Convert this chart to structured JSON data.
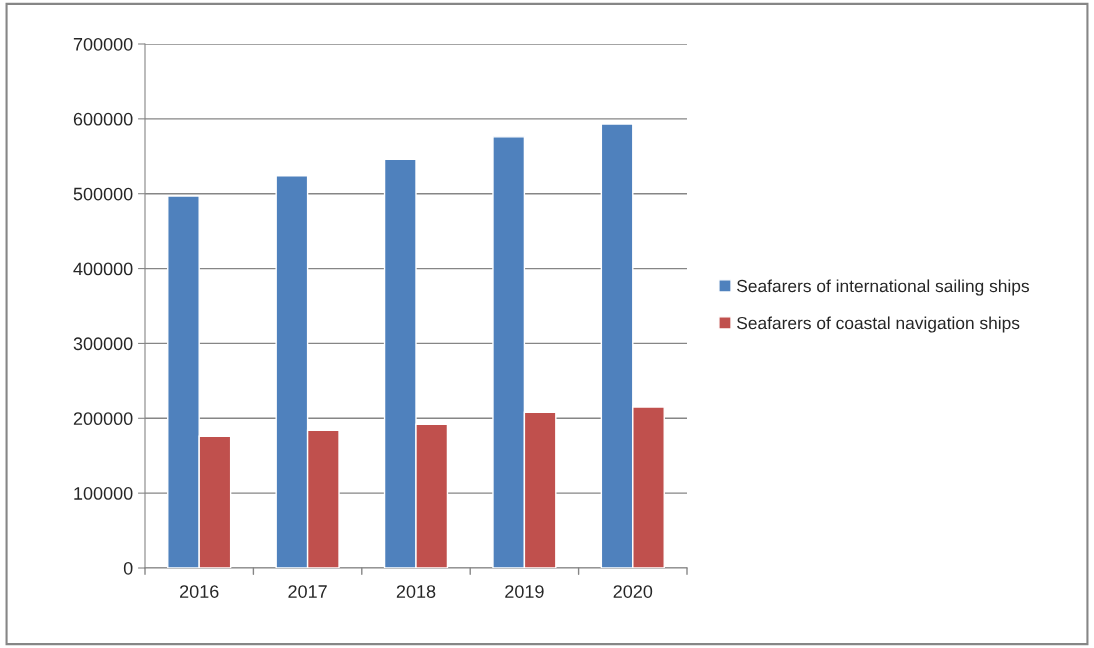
{
  "chart_data": {
    "type": "bar",
    "categories": [
      "2016",
      "2017",
      "2018",
      "2019",
      "2020"
    ],
    "series": [
      {
        "name": "Seafarers of international sailing ships",
        "color": "#4f81bd",
        "values": [
          497000,
          524000,
          546000,
          576000,
          593000
        ]
      },
      {
        "name": "Seafarers of coastal navigation ships",
        "color": "#c0504d",
        "values": [
          176000,
          184000,
          192000,
          208000,
          215000
        ]
      }
    ],
    "ylim": [
      0,
      700000
    ],
    "yticks": [
      0,
      100000,
      200000,
      300000,
      400000,
      500000,
      600000,
      700000
    ],
    "grid": "y",
    "legend": "right"
  }
}
